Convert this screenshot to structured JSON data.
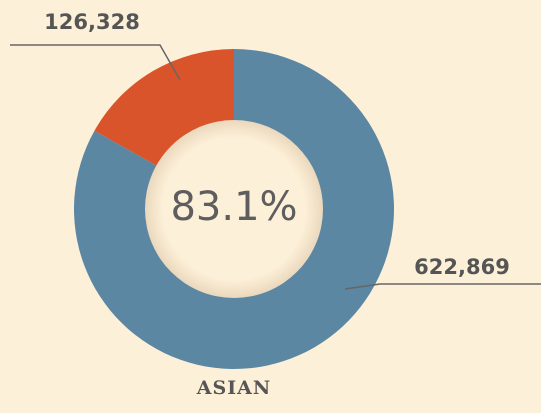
{
  "chart_data": {
    "type": "donut",
    "title": "ASIAN",
    "center_label": "83.1%",
    "categories": [
      null,
      null
    ],
    "values": [
      622869,
      126328
    ],
    "value_labels": [
      "622,869",
      "126,328"
    ],
    "colors": [
      "#5b87a3",
      "#d9542a"
    ]
  }
}
